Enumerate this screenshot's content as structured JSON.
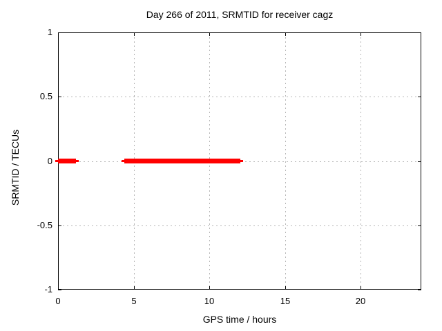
{
  "figure": {
    "background": "#ffffff"
  },
  "chart_data": {
    "type": "line",
    "title": "Day 266 of 2011, SRMTID for receiver cagz",
    "xlabel": "GPS time / hours",
    "ylabel": "SRMTID / TECUs",
    "xlim": [
      0,
      24
    ],
    "ylim": [
      -1,
      1
    ],
    "grid": true,
    "legend_position": "none",
    "xticks": [
      {
        "value": 0,
        "label": "0"
      },
      {
        "value": 5,
        "label": "5"
      },
      {
        "value": 10,
        "label": "10"
      },
      {
        "value": 15,
        "label": "15"
      },
      {
        "value": 20,
        "label": "20"
      }
    ],
    "yticks": [
      {
        "value": 1,
        "label": "1"
      },
      {
        "value": 0.5,
        "label": "0.5"
      },
      {
        "value": 0,
        "label": "0"
      },
      {
        "value": -0.5,
        "label": "-0.5"
      },
      {
        "value": -1,
        "label": "-1"
      }
    ],
    "series": [
      {
        "name": "SRMTID",
        "color": "#ff0000",
        "style": "thick-horizontal-segments",
        "y_value": 0,
        "segments": [
          {
            "start_hour": 0.0,
            "end_hour": 1.2,
            "value": 0
          },
          {
            "start_hour": 4.4,
            "end_hour": 12.05,
            "value": 0
          }
        ]
      }
    ],
    "colors": {
      "data": "#ff0000",
      "grid": "#b5b5b5",
      "border": "#000000",
      "text": "#000000"
    }
  }
}
